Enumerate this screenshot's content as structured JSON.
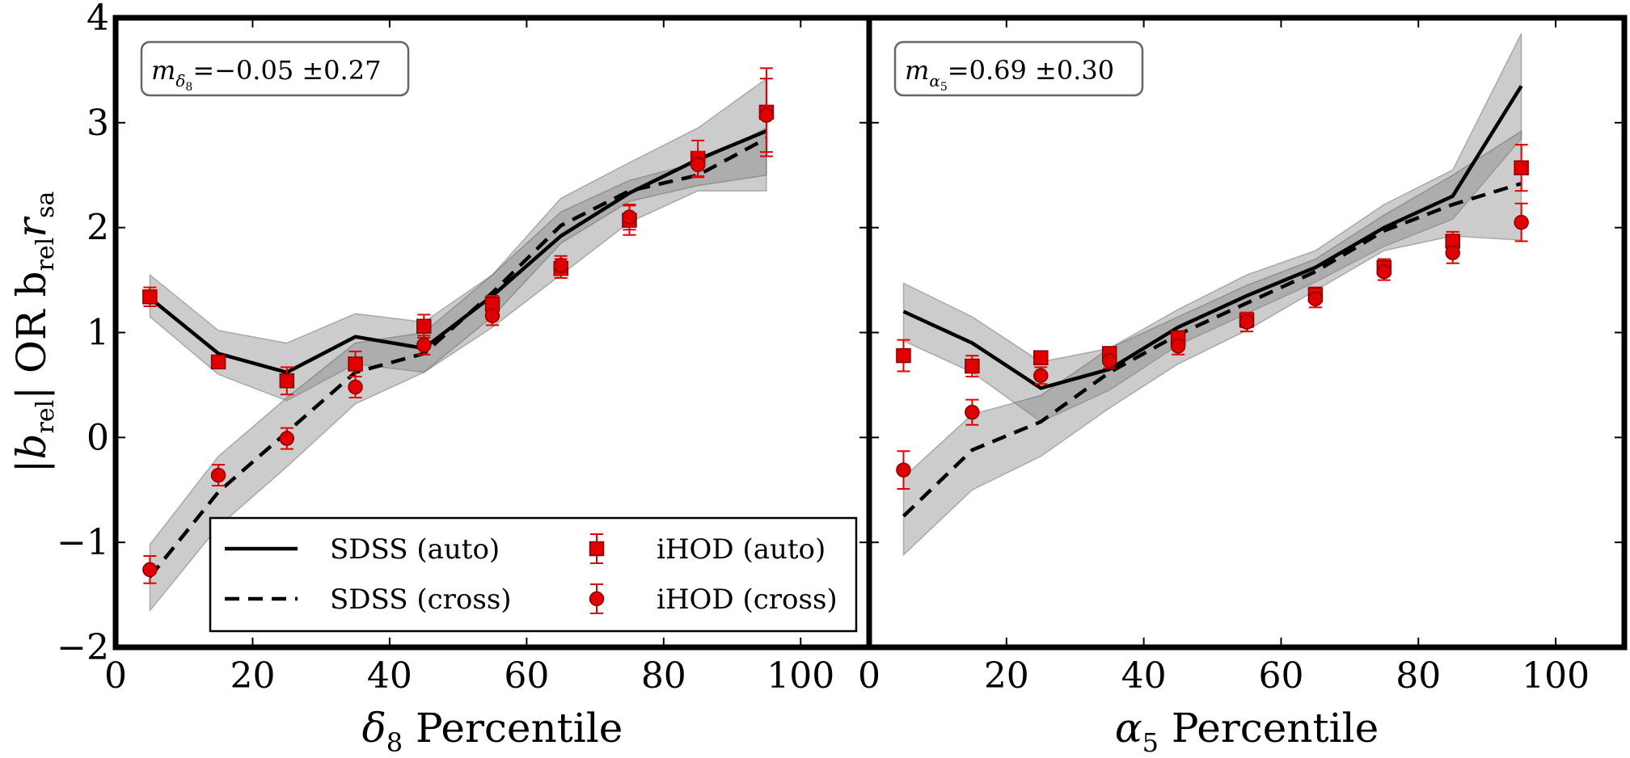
{
  "chart_data": [
    {
      "type": "line",
      "panel": "left",
      "xlabel_symbol": "δ",
      "xlabel_sub": "8",
      "xlabel_rest": " Percentile",
      "ylabel_parts": [
        "|b",
        "rel",
        "|  OR  b",
        "rel",
        "r",
        "sa"
      ],
      "xlim": [
        0,
        110
      ],
      "ylim": [
        -2,
        4
      ],
      "xticks": [
        0,
        20,
        40,
        60,
        80,
        100
      ],
      "yticks": [
        -2,
        -1,
        0,
        1,
        2,
        3,
        4
      ],
      "xtick_labels": [
        "0",
        "20",
        "40",
        "60",
        "80",
        "100"
      ],
      "ytick_labels": [
        "−2",
        "−1",
        "0",
        "1",
        "2",
        "3",
        "4"
      ],
      "annotation": {
        "sym": "m",
        "sub1": "δ",
        "sub2": "8",
        "text": "=−0.05 ±0.27"
      },
      "x": [
        5,
        15,
        25,
        35,
        45,
        55,
        65,
        75,
        85,
        95
      ],
      "series": [
        {
          "name": "SDSS (auto)",
          "style": "solid",
          "values": [
            1.33,
            0.8,
            0.62,
            0.96,
            0.85,
            1.35,
            1.92,
            2.33,
            2.65,
            2.92
          ],
          "band_low": [
            1.15,
            0.6,
            0.35,
            0.7,
            0.62,
            1.05,
            1.55,
            2.05,
            2.35,
            2.35
          ],
          "band_high": [
            1.55,
            1.02,
            0.9,
            1.18,
            1.1,
            1.55,
            2.28,
            2.62,
            2.95,
            3.42
          ]
        },
        {
          "name": "SDSS (cross)",
          "style": "dashed",
          "values": [
            -1.33,
            -0.52,
            0.05,
            0.62,
            0.8,
            1.38,
            2.02,
            2.35,
            2.5,
            2.85
          ],
          "band_low": [
            -1.65,
            -0.85,
            -0.28,
            0.32,
            0.62,
            1.15,
            1.85,
            2.25,
            2.4,
            2.5
          ],
          "band_high": [
            -1.02,
            -0.18,
            0.38,
            0.9,
            1.0,
            1.55,
            2.15,
            2.45,
            2.62,
            2.95
          ]
        },
        {
          "name": "iHOD (auto)",
          "marker": "square",
          "values": [
            1.34,
            0.72,
            0.54,
            0.7,
            1.06,
            1.27,
            1.61,
            2.07,
            2.66,
            3.1
          ],
          "err": [
            0.09,
            0.05,
            0.13,
            0.12,
            0.11,
            0.08,
            0.09,
            0.14,
            0.17,
            0.42
          ]
        },
        {
          "name": "iHOD (cross)",
          "marker": "circle",
          "values": [
            -1.26,
            -0.36,
            -0.01,
            0.48,
            0.88,
            1.16,
            1.64,
            2.1,
            2.6,
            3.07
          ],
          "err": [
            0.13,
            0.1,
            0.1,
            0.1,
            0.09,
            0.09,
            0.09,
            0.12,
            0.12,
            0.35
          ]
        }
      ]
    },
    {
      "type": "line",
      "panel": "right",
      "xlabel_symbol": "α",
      "xlabel_sub": "5",
      "xlabel_rest": " Percentile",
      "xlim": [
        0,
        110
      ],
      "ylim": [
        -2,
        4
      ],
      "xticks": [
        0,
        20,
        40,
        60,
        80,
        100
      ],
      "yticks": [
        -2,
        -1,
        0,
        1,
        2,
        3,
        4
      ],
      "xtick_labels": [
        "0",
        "20",
        "40",
        "60",
        "80",
        "100"
      ],
      "annotation": {
        "sym": "m",
        "sub1": "α",
        "sub2": "5",
        "text": "=0.69 ±0.30"
      },
      "x": [
        5,
        15,
        25,
        35,
        45,
        55,
        65,
        75,
        85,
        95
      ],
      "series": [
        {
          "name": "SDSS (auto)",
          "style": "solid",
          "values": [
            1.2,
            0.9,
            0.47,
            0.65,
            1.05,
            1.35,
            1.62,
            2.0,
            2.3,
            3.35
          ],
          "band_low": [
            0.92,
            0.62,
            0.15,
            0.45,
            0.88,
            1.18,
            1.48,
            1.82,
            2.08,
            2.85
          ],
          "band_high": [
            1.47,
            1.15,
            0.72,
            0.85,
            1.22,
            1.55,
            1.78,
            2.22,
            2.55,
            3.85
          ]
        },
        {
          "name": "SDSS (cross)",
          "style": "dashed",
          "values": [
            -0.75,
            -0.12,
            0.15,
            0.62,
            0.98,
            1.28,
            1.58,
            1.97,
            2.22,
            2.42
          ],
          "band_low": [
            -1.12,
            -0.5,
            -0.18,
            0.28,
            0.7,
            1.02,
            1.4,
            1.78,
            1.92,
            1.88
          ],
          "band_high": [
            -0.38,
            0.22,
            0.4,
            0.85,
            1.15,
            1.45,
            1.7,
            2.12,
            2.5,
            2.92
          ]
        },
        {
          "name": "iHOD (auto)",
          "marker": "square",
          "values": [
            0.78,
            0.68,
            0.76,
            0.8,
            0.95,
            1.12,
            1.36,
            1.62,
            1.87,
            2.57
          ],
          "err": [
            0.15,
            0.1,
            0.06,
            0.05,
            0.06,
            0.07,
            0.07,
            0.08,
            0.09,
            0.22
          ]
        },
        {
          "name": "iHOD (cross)",
          "marker": "circle",
          "values": [
            -0.31,
            0.24,
            0.59,
            0.73,
            0.87,
            1.1,
            1.32,
            1.58,
            1.76,
            2.05
          ],
          "err": [
            0.18,
            0.12,
            0.08,
            0.07,
            0.08,
            0.09,
            0.08,
            0.08,
            0.1,
            0.18
          ]
        }
      ]
    }
  ],
  "legend": {
    "items": [
      {
        "label": "SDSS (auto)",
        "kind": "solid"
      },
      {
        "label": "SDSS (cross)",
        "kind": "dashed"
      },
      {
        "label": "iHOD (auto)",
        "kind": "square"
      },
      {
        "label": "iHOD (cross)",
        "kind": "circle"
      }
    ],
    "placement": "lower-right of left panel"
  },
  "colors": {
    "model_marker": "#e00000",
    "marker_edge": "#8b0000",
    "band_fill": "#7f7f7f",
    "line": "#000000"
  }
}
